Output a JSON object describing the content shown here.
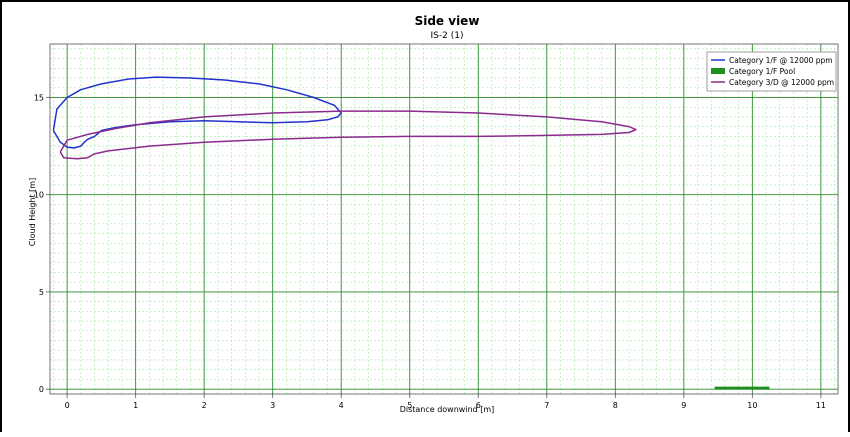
{
  "chart_data": {
    "type": "line",
    "title": "Side view",
    "subtitle": "IS-2 (1)",
    "xlabel": "Distance downwind [m]",
    "ylabel": "Cloud Height [m]",
    "xlim": [
      -0.25,
      11.25
    ],
    "ylim": [
      -0.25,
      17.75
    ],
    "x_major_ticks": [
      0,
      1,
      2,
      3,
      4,
      5,
      6,
      7,
      8,
      9,
      10,
      11
    ],
    "y_major_ticks": [
      0,
      5,
      10,
      15
    ],
    "x_minor_step": 0.2,
    "y_minor_step": 0.5,
    "grid": true,
    "legend_position": "top-right",
    "background_color": "#ffffff",
    "major_grid_color": "#2e8b2e",
    "minor_grid_color": "#a8e6a8",
    "series": [
      {
        "name": "Category 1/F @ 12000 ppm",
        "kind": "line",
        "color": "#2233cc",
        "x": [
          -0.2,
          -0.15,
          0.0,
          0.2,
          0.5,
          0.9,
          1.3,
          1.8,
          2.3,
          2.8,
          3.2,
          3.6,
          3.9,
          4.0,
          3.95,
          3.8,
          3.5,
          3.0,
          2.5,
          2.0,
          1.5,
          1.0,
          0.7,
          0.5,
          0.4,
          0.3,
          0.25,
          0.2,
          0.1,
          0.0,
          -0.1,
          -0.2
        ],
        "y": [
          13.3,
          14.4,
          15.0,
          15.4,
          15.7,
          15.95,
          16.05,
          16.0,
          15.9,
          15.7,
          15.4,
          15.0,
          14.6,
          14.2,
          14.0,
          13.85,
          13.75,
          13.7,
          13.75,
          13.8,
          13.75,
          13.6,
          13.45,
          13.3,
          13.0,
          12.85,
          12.7,
          12.5,
          12.4,
          12.45,
          12.7,
          13.3
        ]
      },
      {
        "name": "Category 1/F Pool",
        "kind": "pool",
        "color": "#1f8f1f",
        "x": [
          9.45,
          10.25
        ],
        "y": [
          0.05,
          0.05
        ]
      },
      {
        "name": "Category 3/D @ 12000 ppm",
        "kind": "line",
        "color": "#8b2a8f",
        "x": [
          -0.1,
          0.0,
          0.3,
          0.7,
          1.2,
          2.0,
          3.0,
          4.0,
          5.0,
          6.0,
          7.0,
          7.8,
          8.2,
          8.3,
          8.2,
          7.8,
          7.0,
          6.0,
          5.0,
          4.0,
          3.0,
          2.0,
          1.2,
          0.6,
          0.4,
          0.3,
          0.15,
          -0.05,
          -0.1
        ],
        "y": [
          12.2,
          12.8,
          13.1,
          13.4,
          13.7,
          14.0,
          14.2,
          14.3,
          14.3,
          14.2,
          14.0,
          13.75,
          13.5,
          13.35,
          13.2,
          13.1,
          13.05,
          13.0,
          13.0,
          12.95,
          12.85,
          12.7,
          12.5,
          12.25,
          12.1,
          11.9,
          11.85,
          11.9,
          12.2
        ]
      }
    ]
  }
}
